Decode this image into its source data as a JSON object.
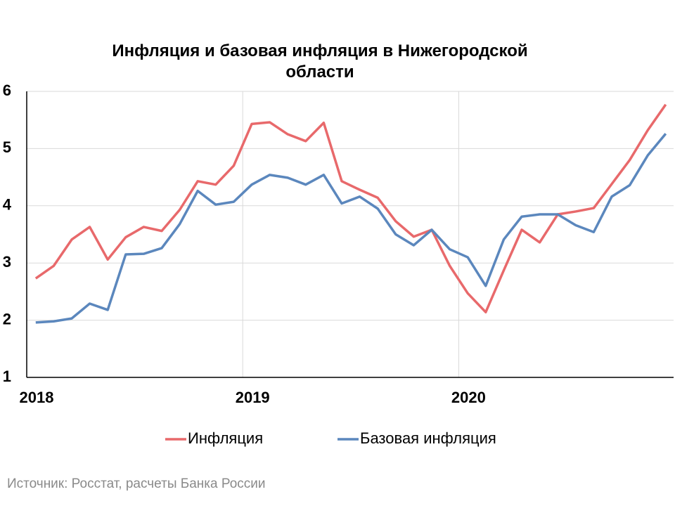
{
  "chart_data": {
    "type": "line",
    "title": "Инфляция и базовая инфляция в Нижегородской области",
    "source": "Источник: Росстат, расчеты Банка России",
    "categories": [
      "2018",
      null,
      null,
      null,
      null,
      null,
      null,
      null,
      null,
      null,
      null,
      null,
      "2019",
      null,
      null,
      null,
      null,
      null,
      null,
      null,
      null,
      null,
      null,
      null,
      "2020",
      null,
      null,
      null,
      null,
      null,
      null,
      null,
      null,
      null,
      null,
      null
    ],
    "series": [
      {
        "name": "Инфляция",
        "color": "#e8696b",
        "values": [
          2.73,
          2.95,
          3.41,
          3.63,
          3.06,
          3.45,
          3.63,
          3.56,
          3.93,
          4.43,
          4.37,
          4.7,
          5.43,
          5.46,
          5.25,
          5.13,
          5.45,
          4.43,
          4.28,
          4.14,
          3.73,
          3.46,
          3.58,
          2.95,
          2.47,
          2.14,
          2.87,
          3.58,
          3.36,
          3.85,
          3.9,
          3.96,
          4.38,
          4.8,
          5.32,
          5.77
        ]
      },
      {
        "name": "Базовая инфляция",
        "color": "#5b87bd",
        "values": [
          1.96,
          1.98,
          2.03,
          2.29,
          2.18,
          3.15,
          3.16,
          3.26,
          3.68,
          4.26,
          4.02,
          4.07,
          4.37,
          4.54,
          4.49,
          4.37,
          4.54,
          4.04,
          4.16,
          3.95,
          3.5,
          3.31,
          3.58,
          3.24,
          3.1,
          2.6,
          3.41,
          3.81,
          3.85,
          3.85,
          3.66,
          3.54,
          4.16,
          4.36,
          4.88,
          5.26
        ]
      }
    ],
    "ylim": [
      1,
      6
    ],
    "yticks": [
      1,
      2,
      3,
      4,
      5,
      6
    ],
    "grid": true,
    "legend": "bottom"
  }
}
